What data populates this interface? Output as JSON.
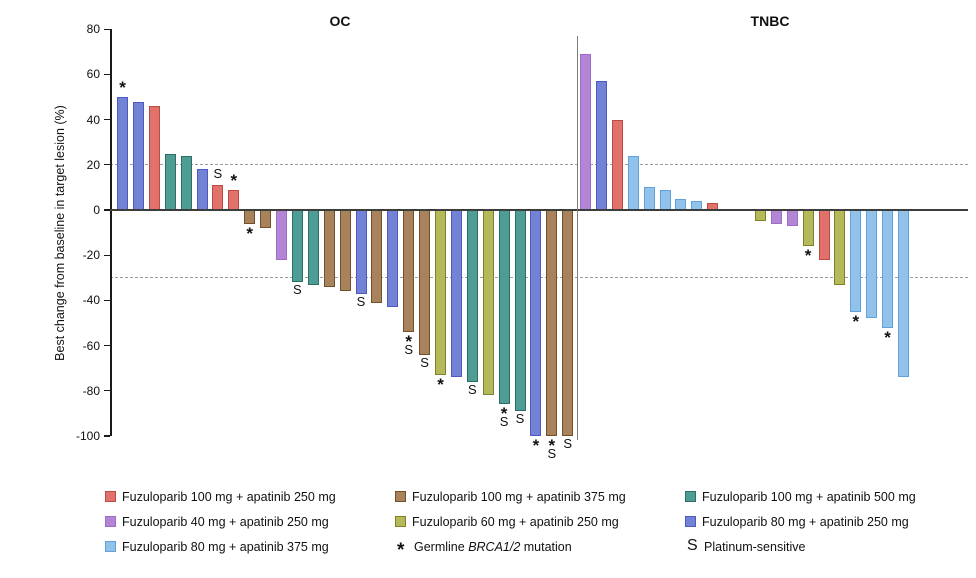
{
  "chart_data": {
    "type": "bar",
    "variant": "waterfall",
    "ylabel": "Best change from baseline in target lesion (%)",
    "ylim": [
      -100,
      80
    ],
    "yticks": [
      80,
      60,
      40,
      20,
      0,
      -20,
      -40,
      -60,
      -80,
      -100
    ],
    "reference_lines": [
      20,
      -30
    ],
    "grid": "off",
    "legend_position": "bottom",
    "groups": {
      "red": {
        "label": "Fuzuloparib 100 mg + apatinib 250 mg",
        "fill": "#E0726B",
        "border": "#BC4B41"
      },
      "brown": {
        "label": "Fuzuloparib 100 mg + apatinib 375 mg",
        "fill": "#A8825B",
        "border": "#71502A"
      },
      "teal": {
        "label": "Fuzuloparib 100 mg + apatinib 500 mg",
        "fill": "#4E9D94",
        "border": "#2D6F66"
      },
      "purple": {
        "label": "Fuzuloparib 40 mg + apatinib 250 mg",
        "fill": "#B286D4",
        "border": "#A06CC8"
      },
      "olive": {
        "label": "Fuzuloparib 60 mg + apatinib 250 mg",
        "fill": "#B6B85C",
        "border": "#7F8128"
      },
      "blue": {
        "label": "Fuzuloparib 80 mg + apatinib 250 mg",
        "fill": "#7282D5",
        "border": "#4A5AC0"
      },
      "lightblue": {
        "label": "Fuzuloparib 80 mg + apatinib 375 mg",
        "fill": "#90C2EA",
        "border": "#62A2DC"
      }
    },
    "mark_meanings": {
      "*": "Germline BRCA1/2 mutation",
      "S": "Platinum-sensitive"
    },
    "panels": [
      {
        "title": "OC",
        "bars": [
          {
            "group": "blue",
            "value": 50,
            "mark": "*"
          },
          {
            "group": "blue",
            "value": 48
          },
          {
            "group": "red",
            "value": 46
          },
          {
            "group": "teal",
            "value": 25
          },
          {
            "group": "teal",
            "value": 24
          },
          {
            "group": "blue",
            "value": 18
          },
          {
            "group": "red",
            "value": 11,
            "mark": "S"
          },
          {
            "group": "red",
            "value": 9,
            "mark": "*"
          },
          {
            "group": "brown",
            "value": -6,
            "mark": "*"
          },
          {
            "group": "brown",
            "value": -8
          },
          {
            "group": "purple",
            "value": -22
          },
          {
            "group": "teal",
            "value": -32,
            "mark": "S"
          },
          {
            "group": "teal",
            "value": -33
          },
          {
            "group": "brown",
            "value": -34
          },
          {
            "group": "brown",
            "value": -36
          },
          {
            "group": "blue",
            "value": -37,
            "mark": "S"
          },
          {
            "group": "brown",
            "value": -41
          },
          {
            "group": "blue",
            "value": -43
          },
          {
            "group": "brown",
            "value": -54,
            "mark": "*S"
          },
          {
            "group": "brown",
            "value": -64,
            "mark": "S"
          },
          {
            "group": "olive",
            "value": -73,
            "mark": "*"
          },
          {
            "group": "blue",
            "value": -74
          },
          {
            "group": "teal",
            "value": -76,
            "mark": "S"
          },
          {
            "group": "olive",
            "value": -82
          },
          {
            "group": "teal",
            "value": -86,
            "mark": "*S"
          },
          {
            "group": "teal",
            "value": -89,
            "mark": "S"
          },
          {
            "group": "blue",
            "value": -100,
            "mark": "*"
          },
          {
            "group": "brown",
            "value": -100,
            "mark": "*S"
          },
          {
            "group": "brown",
            "value": -100,
            "mark": "S"
          }
        ]
      },
      {
        "title": "TNBC",
        "bars": [
          {
            "group": "purple",
            "value": 69
          },
          {
            "group": "blue",
            "value": 57
          },
          {
            "group": "red",
            "value": 40
          },
          {
            "group": "lightblue",
            "value": 24
          },
          {
            "group": "lightblue",
            "value": 10
          },
          {
            "group": "lightblue",
            "value": 9
          },
          {
            "group": "lightblue",
            "value": 5
          },
          {
            "group": "lightblue",
            "value": 4
          },
          {
            "group": "red",
            "value": 3
          },
          {
            "group": null,
            "value": 0
          },
          {
            "group": null,
            "value": 0
          },
          {
            "group": "olive",
            "value": -5
          },
          {
            "group": "purple",
            "value": -6
          },
          {
            "group": "purple",
            "value": -7
          },
          {
            "group": "olive",
            "value": -16,
            "mark": "*"
          },
          {
            "group": "red",
            "value": -22
          },
          {
            "group": "olive",
            "value": -33
          },
          {
            "group": "lightblue",
            "value": -45,
            "mark": "*"
          },
          {
            "group": "lightblue",
            "value": -48
          },
          {
            "group": "lightblue",
            "value": -52,
            "mark": "*"
          },
          {
            "group": "lightblue",
            "value": -74
          }
        ]
      }
    ],
    "legend": {
      "rows": [
        [
          {
            "type": "group",
            "group": "red"
          },
          {
            "type": "group",
            "group": "brown"
          },
          {
            "type": "group",
            "group": "teal"
          }
        ],
        [
          {
            "type": "group",
            "group": "purple"
          },
          {
            "type": "group",
            "group": "olive"
          },
          {
            "type": "group",
            "group": "blue"
          }
        ],
        [
          {
            "type": "group",
            "group": "lightblue"
          },
          {
            "type": "symbol",
            "symbol": "*",
            "label_parts": [
              "Germline ",
              "BRCA1/2",
              " mutation"
            ],
            "italic_index": 1
          },
          {
            "type": "symbol",
            "symbol": "S",
            "label_parts": [
              "Platinum-sensitive"
            ],
            "italic_index": -1
          }
        ]
      ]
    }
  }
}
